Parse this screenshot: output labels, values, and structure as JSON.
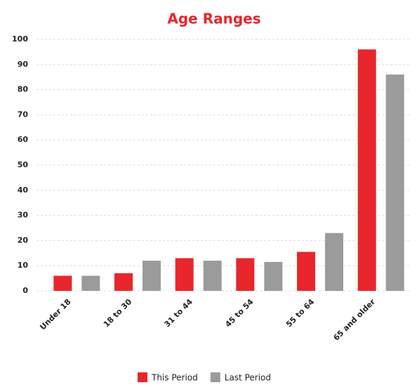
{
  "chart_data": {
    "type": "bar",
    "title": "Age Ranges",
    "categories": [
      "Under 18",
      "18 to 30",
      "31 to 44",
      "45 to 54",
      "55 to 64",
      "65 and older"
    ],
    "series": [
      {
        "name": "This Period",
        "color": "#e8262b",
        "values": [
          6,
          7,
          13,
          13,
          15.5,
          96
        ]
      },
      {
        "name": "Last Period",
        "color": "#9b9b9b",
        "values": [
          6,
          12,
          12,
          11.5,
          23,
          86
        ]
      }
    ],
    "ylim": [
      0,
      100
    ],
    "yticks": [
      0,
      10,
      20,
      30,
      40,
      50,
      60,
      70,
      80,
      90,
      100
    ],
    "grid": true,
    "legend": "bottom"
  }
}
